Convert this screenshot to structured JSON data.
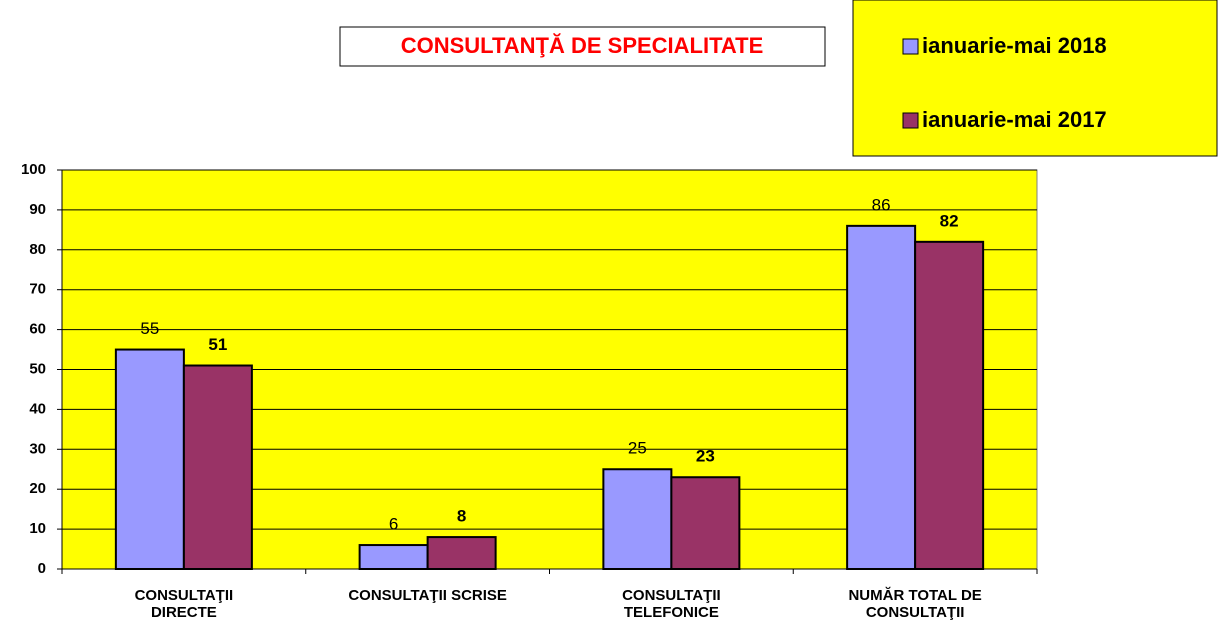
{
  "chart_data": {
    "type": "bar",
    "title": "CONSULTANŢĂ DE SPECIALITATE",
    "categories": [
      "CONSULTAŢII\nDIRECTE",
      "CONSULTAŢII SCRISE",
      "CONSULTAŢII\nTELEFONICE",
      "NUMĂR TOTAL DE\nCONSULTAŢII"
    ],
    "series": [
      {
        "name": "ianuarie-mai 2018",
        "color": "#9999ff",
        "values": [
          55,
          6,
          25,
          86
        ]
      },
      {
        "name": "ianuarie-mai 2017",
        "color": "#993366",
        "values": [
          51,
          8,
          23,
          82
        ]
      }
    ],
    "ylim": [
      0,
      100
    ],
    "yticks": [
      0,
      10,
      20,
      30,
      40,
      50,
      60,
      70,
      80,
      90,
      100
    ],
    "grid": true,
    "legend": "top-right",
    "plot_background": "#ffff00"
  }
}
